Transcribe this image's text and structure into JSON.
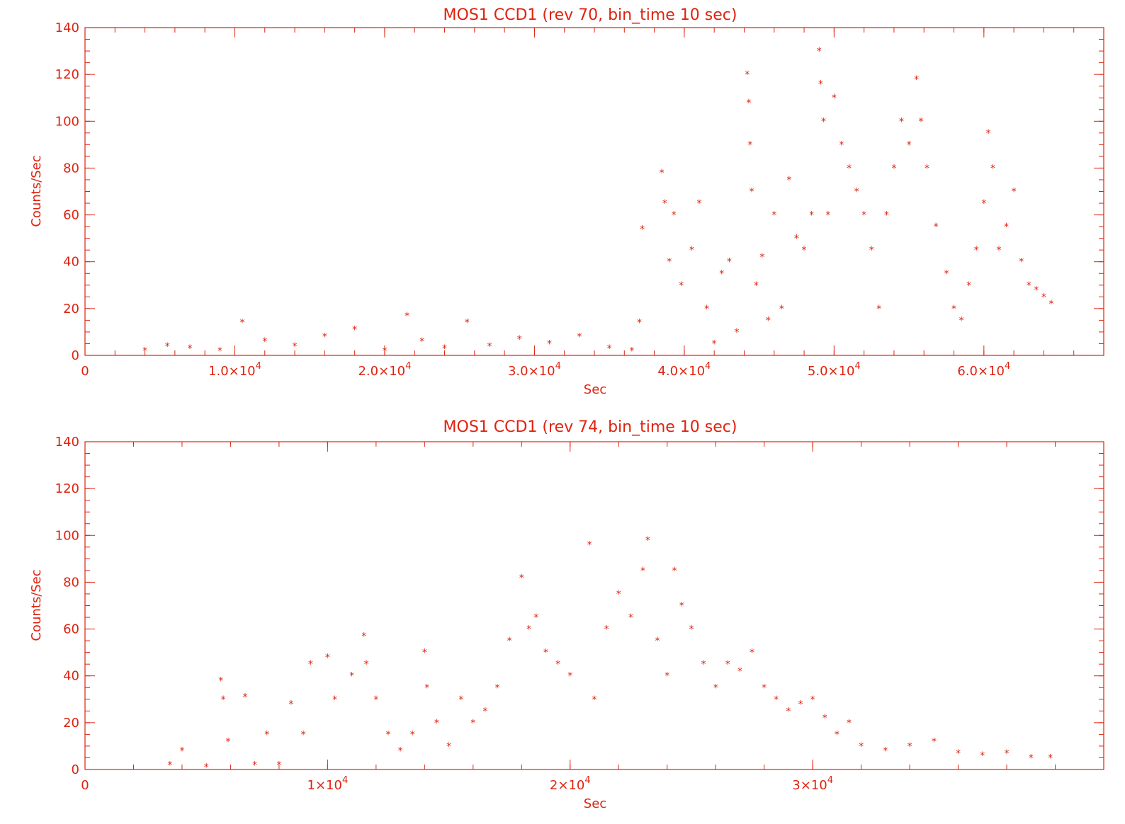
{
  "colors": {
    "ink": "#e0220f",
    "background": "#ffffff"
  },
  "chart_data": [
    {
      "type": "scatter",
      "marker": "asterisk",
      "title": "MOS1 CCD1 (rev 70, bin_time 10 sec)",
      "xlabel": "Sec",
      "ylabel": "Counts/Sec",
      "xlim": [
        0,
        68000
      ],
      "ylim": [
        0,
        140
      ],
      "xticks": [
        0,
        10000,
        20000,
        30000,
        40000,
        50000,
        60000
      ],
      "xtick_labels": [
        "0",
        "1.0×10",
        "2.0×10",
        "3.0×10",
        "4.0×10",
        "5.0×10",
        "6.0×10"
      ],
      "xtick_exps": [
        "",
        "4",
        "4",
        "4",
        "4",
        "4",
        "4"
      ],
      "yticks": [
        0,
        20,
        40,
        60,
        80,
        100,
        120,
        140
      ],
      "ytick_labels": [
        "0",
        "20",
        "40",
        "60",
        "80",
        "100",
        "120",
        "140"
      ],
      "points": [
        [
          4000,
          2
        ],
        [
          5500,
          4
        ],
        [
          7000,
          3
        ],
        [
          9000,
          2
        ],
        [
          10500,
          14
        ],
        [
          12000,
          6
        ],
        [
          14000,
          4
        ],
        [
          16000,
          8
        ],
        [
          18000,
          11
        ],
        [
          20000,
          2
        ],
        [
          21500,
          17
        ],
        [
          22500,
          6
        ],
        [
          24000,
          3
        ],
        [
          25500,
          14
        ],
        [
          27000,
          4
        ],
        [
          29000,
          7
        ],
        [
          31000,
          5
        ],
        [
          33000,
          8
        ],
        [
          35000,
          3
        ],
        [
          36500,
          2
        ],
        [
          37000,
          14
        ],
        [
          37200,
          54
        ],
        [
          38500,
          78
        ],
        [
          38700,
          65
        ],
        [
          39000,
          40
        ],
        [
          39300,
          60
        ],
        [
          39800,
          30
        ],
        [
          40500,
          45
        ],
        [
          41000,
          65
        ],
        [
          41500,
          20
        ],
        [
          42000,
          5
        ],
        [
          42500,
          35
        ],
        [
          43000,
          40
        ],
        [
          43500,
          10
        ],
        [
          44200,
          120
        ],
        [
          44300,
          108
        ],
        [
          44400,
          90
        ],
        [
          44500,
          70
        ],
        [
          44800,
          30
        ],
        [
          45200,
          42
        ],
        [
          45600,
          15
        ],
        [
          46000,
          60
        ],
        [
          46500,
          20
        ],
        [
          47000,
          75
        ],
        [
          47500,
          50
        ],
        [
          48000,
          45
        ],
        [
          48500,
          60
        ],
        [
          49000,
          130
        ],
        [
          49100,
          116
        ],
        [
          49300,
          100
        ],
        [
          49600,
          60
        ],
        [
          50000,
          110
        ],
        [
          50500,
          90
        ],
        [
          51000,
          80
        ],
        [
          51500,
          70
        ],
        [
          52000,
          60
        ],
        [
          52500,
          45
        ],
        [
          53000,
          20
        ],
        [
          53500,
          60
        ],
        [
          54000,
          80
        ],
        [
          54500,
          100
        ],
        [
          55000,
          90
        ],
        [
          55500,
          118
        ],
        [
          55800,
          100
        ],
        [
          56200,
          80
        ],
        [
          56800,
          55
        ],
        [
          57500,
          35
        ],
        [
          58000,
          20
        ],
        [
          58500,
          15
        ],
        [
          59000,
          30
        ],
        [
          59500,
          45
        ],
        [
          60000,
          65
        ],
        [
          60300,
          95
        ],
        [
          60600,
          80
        ],
        [
          61000,
          45
        ],
        [
          61500,
          55
        ],
        [
          62000,
          70
        ],
        [
          62500,
          40
        ],
        [
          63000,
          30
        ],
        [
          63500,
          28
        ],
        [
          64000,
          25
        ],
        [
          64500,
          22
        ]
      ]
    },
    {
      "type": "scatter",
      "marker": "asterisk",
      "title": "MOS1 CCD1 (rev 74, bin_time 10 sec)",
      "xlabel": "Sec",
      "ylabel": "Counts/Sec",
      "xlim": [
        0,
        42000
      ],
      "ylim": [
        0,
        140
      ],
      "xticks": [
        0,
        10000,
        20000,
        30000
      ],
      "xtick_labels": [
        "0",
        "1×10",
        "2×10",
        "3×10"
      ],
      "xtick_exps": [
        "",
        "4",
        "4",
        "4"
      ],
      "yticks": [
        0,
        20,
        40,
        60,
        80,
        100,
        120,
        140
      ],
      "ytick_labels": [
        "0",
        "20",
        "40",
        "60",
        "80",
        "100",
        "120",
        "140"
      ],
      "points": [
        [
          3500,
          2
        ],
        [
          4000,
          8
        ],
        [
          5000,
          1
        ],
        [
          5600,
          38
        ],
        [
          5700,
          30
        ],
        [
          5900,
          12
        ],
        [
          6600,
          31
        ],
        [
          7000,
          2
        ],
        [
          7500,
          15
        ],
        [
          8000,
          2
        ],
        [
          8500,
          28
        ],
        [
          9000,
          15
        ],
        [
          9300,
          45
        ],
        [
          10000,
          48
        ],
        [
          10300,
          30
        ],
        [
          11000,
          40
        ],
        [
          11500,
          57
        ],
        [
          11600,
          45
        ],
        [
          12000,
          30
        ],
        [
          12500,
          15
        ],
        [
          13000,
          8
        ],
        [
          13500,
          15
        ],
        [
          14000,
          50
        ],
        [
          14100,
          35
        ],
        [
          14500,
          20
        ],
        [
          15000,
          10
        ],
        [
          15500,
          30
        ],
        [
          16000,
          20
        ],
        [
          16500,
          25
        ],
        [
          17000,
          35
        ],
        [
          17500,
          55
        ],
        [
          18000,
          82
        ],
        [
          18300,
          60
        ],
        [
          18600,
          65
        ],
        [
          19000,
          50
        ],
        [
          19500,
          45
        ],
        [
          20000,
          40
        ],
        [
          20800,
          96
        ],
        [
          21000,
          30
        ],
        [
          21500,
          60
        ],
        [
          22000,
          75
        ],
        [
          22500,
          65
        ],
        [
          23000,
          85
        ],
        [
          23200,
          98
        ],
        [
          23600,
          55
        ],
        [
          24000,
          40
        ],
        [
          24300,
          85
        ],
        [
          24600,
          70
        ],
        [
          25000,
          60
        ],
        [
          25500,
          45
        ],
        [
          26000,
          35
        ],
        [
          26500,
          45
        ],
        [
          27000,
          42
        ],
        [
          27500,
          50
        ],
        [
          28000,
          35
        ],
        [
          28500,
          30
        ],
        [
          29000,
          25
        ],
        [
          29500,
          28
        ],
        [
          30000,
          30
        ],
        [
          30500,
          22
        ],
        [
          31000,
          15
        ],
        [
          31500,
          20
        ],
        [
          32000,
          10
        ],
        [
          33000,
          8
        ],
        [
          34000,
          10
        ],
        [
          35000,
          12
        ],
        [
          36000,
          7
        ],
        [
          37000,
          6
        ],
        [
          38000,
          7
        ],
        [
          39000,
          5
        ],
        [
          39800,
          5
        ]
      ]
    }
  ]
}
